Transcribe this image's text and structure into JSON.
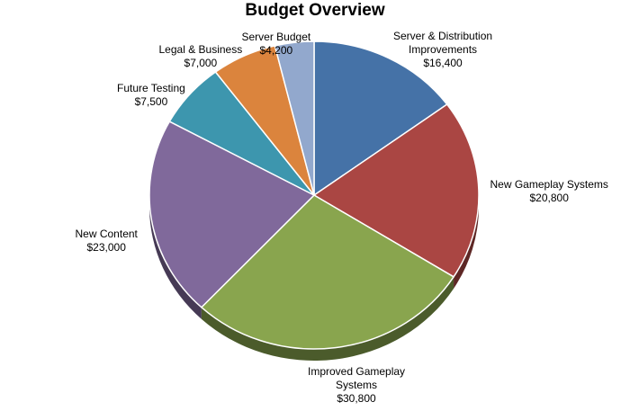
{
  "chart_data": {
    "type": "pie",
    "title": "Budget Overview",
    "slices": [
      {
        "name": "Server & Distribution Improvements",
        "label_lines": [
          "Server & Distribution",
          "Improvements"
        ],
        "value": 16400,
        "value_label": "$16,400",
        "color": "#4572a7"
      },
      {
        "name": "New Gameplay Systems",
        "label_lines": [
          "New Gameplay Systems"
        ],
        "value": 20800,
        "value_label": "$20,800",
        "color": "#aa4643"
      },
      {
        "name": "Improved Gameplay Systems",
        "label_lines": [
          "Improved Gameplay",
          "Systems"
        ],
        "value": 30800,
        "value_label": "$30,800",
        "color": "#89a54e"
      },
      {
        "name": "New Content",
        "label_lines": [
          "New Content"
        ],
        "value": 23000,
        "value_label": "$23,000",
        "color": "#80699b"
      },
      {
        "name": "Future Testing",
        "label_lines": [
          "Future Testing"
        ],
        "value": 7500,
        "value_label": "$7,500",
        "color": "#3d96ae"
      },
      {
        "name": "Legal & Business",
        "label_lines": [
          "Legal & Business"
        ],
        "value": 7000,
        "value_label": "$7,000",
        "color": "#db843d"
      },
      {
        "name": "Server Budget",
        "label_lines": [
          "Server Budget"
        ],
        "value": 4200,
        "value_label": "$4,200",
        "color": "#92a8cd"
      }
    ]
  }
}
